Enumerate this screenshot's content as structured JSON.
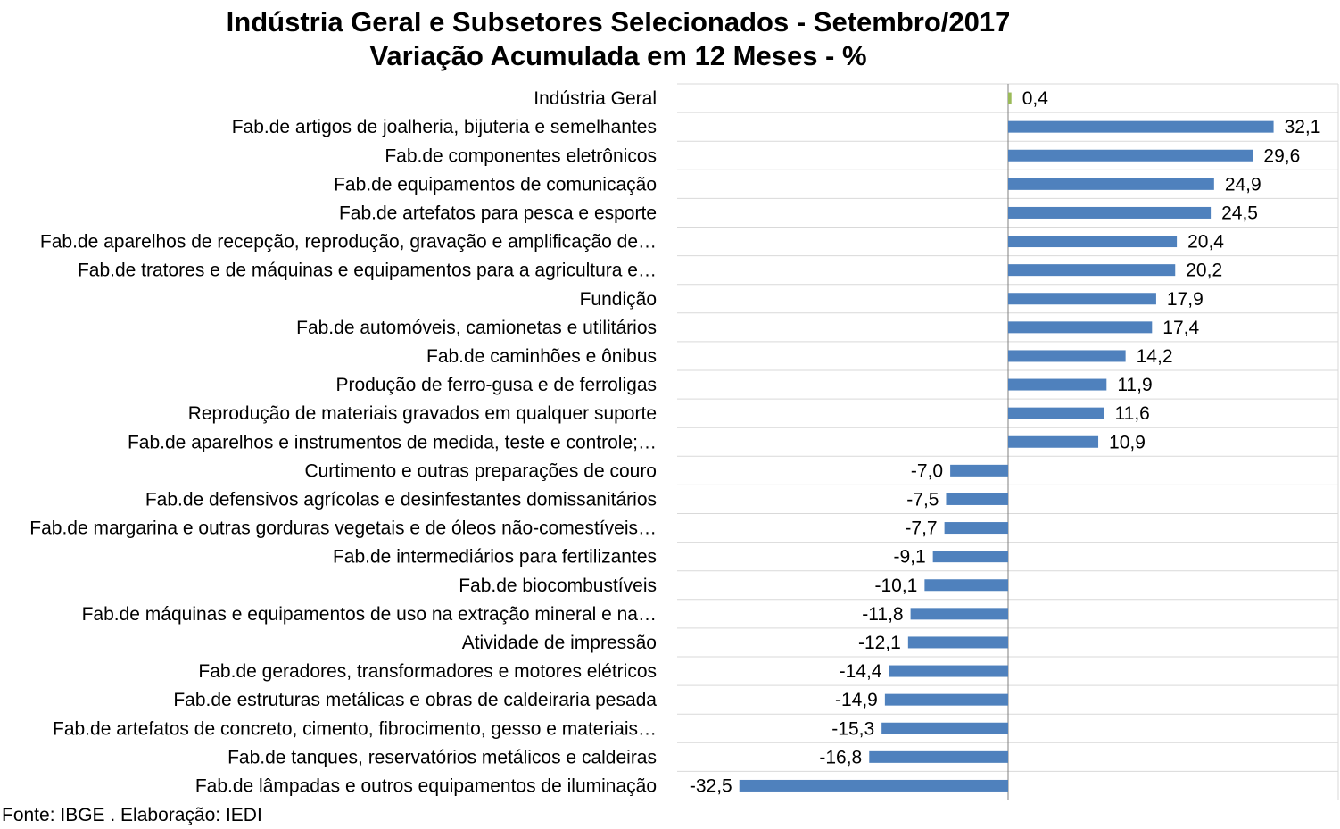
{
  "chart_data": {
    "type": "bar",
    "orientation": "horizontal",
    "title": "Indústria Geral e Subsetores Selecionados - Setembro/2017",
    "subtitle": "Variação Acumulada em 12 Meses - %",
    "categories": [
      "Indústria Geral",
      "Fab.de artigos de joalheria, bijuteria e semelhantes",
      "Fab.de componentes eletrônicos",
      "Fab.de equipamentos de comunicação",
      "Fab.de artefatos para pesca e esporte",
      "Fab.de aparelhos de recepção, reprodução, gravação e amplificação de…",
      "Fab.de tratores e de máquinas e equipamentos para a agricultura e…",
      "Fundição",
      "Fab.de automóveis, camionetas e utilitários",
      "Fab.de caminhões e ônibus",
      "Produção de ferro-gusa e de ferroligas",
      "Reprodução de materiais gravados em qualquer suporte",
      "Fab.de aparelhos e instrumentos de medida, teste e controle;…",
      "Curtimento e outras preparações de couro",
      "Fab.de defensivos agrícolas e desinfestantes domissanitários",
      "Fab.de margarina e outras gorduras vegetais e de óleos não-comestíveis…",
      "Fab.de intermediários para fertilizantes",
      "Fab.de biocombustíveis",
      "Fab.de máquinas e equipamentos de uso na extração mineral e na…",
      "Atividade de impressão",
      "Fab.de geradores, transformadores e motores elétricos",
      "Fab.de estruturas metálicas e obras de caldeiraria pesada",
      "Fab.de artefatos de concreto, cimento, fibrocimento, gesso e materiais…",
      "Fab.de tanques, reservatórios metálicos e caldeiras",
      "Fab.de lâmpadas e outros equipamentos de iluminação"
    ],
    "values": [
      0.4,
      32.1,
      29.6,
      24.9,
      24.5,
      20.4,
      20.2,
      17.9,
      17.4,
      14.2,
      11.9,
      11.6,
      10.9,
      -7.0,
      -7.5,
      -7.7,
      -9.1,
      -10.1,
      -11.8,
      -12.1,
      -14.4,
      -14.9,
      -15.3,
      -16.8,
      -32.5
    ],
    "value_labels": [
      "0,4",
      "32,1",
      "29,6",
      "24,9",
      "24,5",
      "20,4",
      "20,2",
      "17,9",
      "17,4",
      "14,2",
      "11,9",
      "11,6",
      "10,9",
      "-7,0",
      "-7,5",
      "-7,7",
      "-9,1",
      "-10,1",
      "-11,8",
      "-12,1",
      "-14,4",
      "-14,9",
      "-15,3",
      "-16,8",
      "-32,5"
    ],
    "colors": {
      "bar": "#4f81bd",
      "highlight_bar": "#9bbb59",
      "gridline": "#d9d9d9",
      "axis": "#808080"
    },
    "highlight_index": 0,
    "xlim": [
      -40,
      40
    ],
    "grid": true
  },
  "footnote": "Fonte: IBGE . Elaboração: IEDI"
}
